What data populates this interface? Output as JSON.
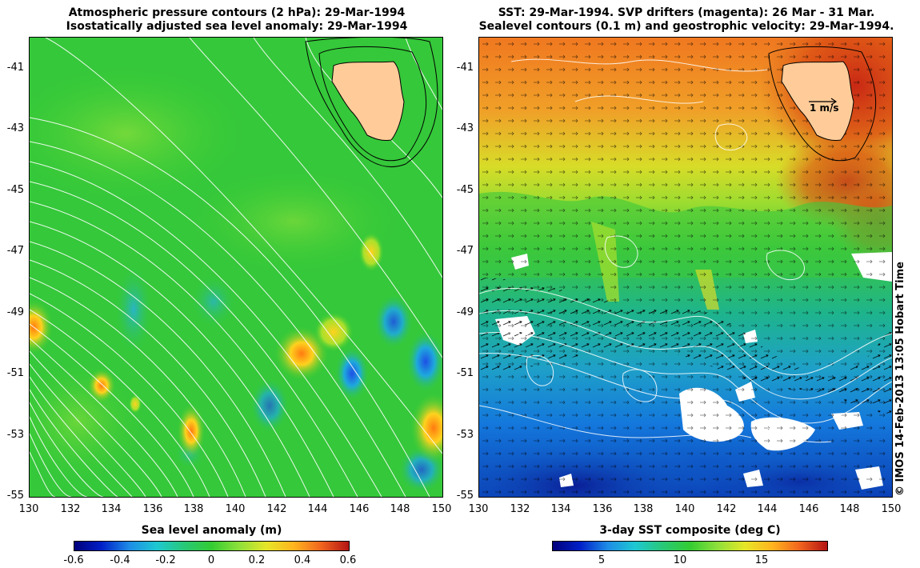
{
  "left_panel": {
    "title_line1": "Atmospheric pressure contours (2 hPa): 29-Mar-1994",
    "title_line2": "Isostatically adjusted sea level anomaly: 29-Mar-1994",
    "colorbar_label": "Sea level anomaly (m)",
    "colorbar_ticks": [
      "-0.6",
      "-0.4",
      "-0.2",
      "0",
      "0.2",
      "0.4",
      "0.6"
    ]
  },
  "right_panel": {
    "title_line1": "SST: 29-Mar-1994. SVP drifters (magenta): 26 Mar - 31 Mar.",
    "title_line2": "Sealevel contours (0.1 m) and geostrophic velocity: 29-Mar-1994.",
    "colorbar_label": "3-day SST composite (deg C)",
    "colorbar_ticks": [
      "5",
      "10",
      "15"
    ],
    "velocity_scale_label": "1 m/s"
  },
  "axes": {
    "lat_ticks": [
      "-41",
      "-43",
      "-45",
      "-47",
      "-49",
      "-51",
      "-53",
      "-55"
    ],
    "lon_ticks": [
      "130",
      "132",
      "134",
      "136",
      "138",
      "140",
      "142",
      "144",
      "146",
      "148",
      "150"
    ]
  },
  "credit": "© IMOS 14-Feb-2013 13:05 Hobart Time",
  "colors": {
    "land": "#ffcc99",
    "sla_base": "#33cc33",
    "sst_warm": "#e07020",
    "sst_cold": "#1060d0"
  }
}
